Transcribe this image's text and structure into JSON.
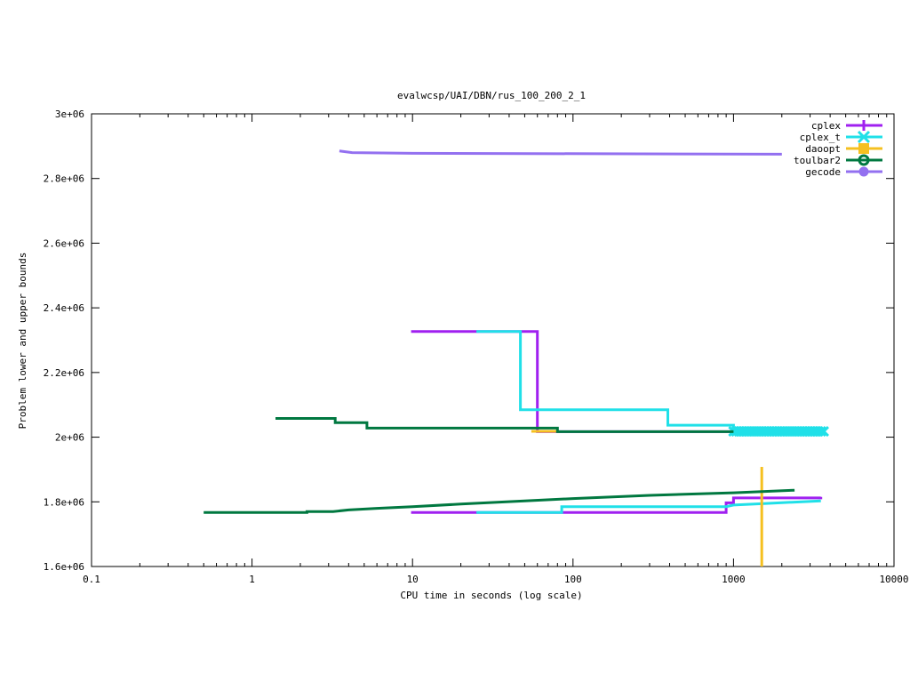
{
  "chart_data": {
    "type": "line",
    "title": "evalwcsp/UAI/DBN/rus_100_200_2_1",
    "xlabel": "CPU time in seconds (log scale)",
    "ylabel": "Problem lower and upper bounds",
    "xscale": "log",
    "xlim": [
      0.1,
      10000
    ],
    "ylim": [
      1600000,
      3000000
    ],
    "x_ticks": [
      0.1,
      1,
      10,
      100,
      1000,
      10000
    ],
    "x_tick_labels": [
      "0.1",
      "1",
      "10",
      "100",
      "1000",
      "10000"
    ],
    "y_ticks": [
      1600000,
      1800000,
      2000000,
      2200000,
      2400000,
      2600000,
      2800000,
      3000000
    ],
    "y_tick_labels": [
      "1.6e+06",
      "1.8e+06",
      "2e+06",
      "2.2e+06",
      "2.4e+06",
      "2.6e+06",
      "2.8e+06",
      "3e+06"
    ],
    "grid": false,
    "legend_position": "top-right",
    "series": [
      {
        "name": "cplex",
        "color": "#a020f0",
        "marker": "plus",
        "upper": [
          [
            9.8,
            2327000
          ],
          [
            60,
            2327000
          ],
          [
            60,
            2017000
          ],
          [
            1000,
            2017000
          ]
        ],
        "lower": [
          [
            9.8,
            1767000
          ],
          [
            900,
            1767000
          ],
          [
            900,
            1797000
          ],
          [
            1000,
            1797000
          ],
          [
            1000,
            1812000
          ],
          [
            3500,
            1812000
          ],
          [
            3500,
            1815000
          ]
        ]
      },
      {
        "name": "cplex_t",
        "color": "#20e0e8",
        "marker": "x",
        "upper": [
          [
            25,
            2327000
          ],
          [
            47,
            2327000
          ],
          [
            47,
            2085000
          ],
          [
            390,
            2085000
          ],
          [
            390,
            2037000
          ],
          [
            1000,
            2037000
          ],
          [
            1000,
            2018000
          ],
          [
            3700,
            2018000
          ]
        ],
        "lower": [
          [
            25,
            1767000
          ],
          [
            85,
            1767000
          ],
          [
            85,
            1785000
          ],
          [
            900,
            1785000
          ],
          [
            1000,
            1790000
          ],
          [
            1600,
            1795000
          ],
          [
            3500,
            1803000
          ]
        ]
      },
      {
        "name": "daoopt",
        "color": "#f5c020",
        "marker": "square",
        "upper": [
          [
            55,
            2018000
          ],
          [
            80,
            2018000
          ]
        ],
        "vertical": [
          1500,
          1600000,
          1908000
        ]
      },
      {
        "name": "toulbar2",
        "color": "#007840",
        "marker": "circle",
        "upper": [
          [
            1.4,
            2058000
          ],
          [
            3.3,
            2058000
          ],
          [
            3.3,
            2045000
          ],
          [
            5.2,
            2045000
          ],
          [
            5.2,
            2028000
          ],
          [
            80,
            2028000
          ],
          [
            80,
            2017000
          ],
          [
            1000,
            2017000
          ]
        ],
        "lower": [
          [
            0.5,
            1767000
          ],
          [
            2.2,
            1767000
          ],
          [
            2.2,
            1770000
          ],
          [
            3.2,
            1770000
          ],
          [
            4,
            1775000
          ],
          [
            6,
            1780000
          ],
          [
            10,
            1785000
          ],
          [
            20,
            1793000
          ],
          [
            50,
            1803000
          ],
          [
            100,
            1810000
          ],
          [
            300,
            1820000
          ],
          [
            1000,
            1828000
          ],
          [
            2400,
            1836000
          ]
        ]
      },
      {
        "name": "gecode",
        "color": "#9370f0",
        "marker": "dot",
        "upper": [
          [
            3.5,
            2885000
          ],
          [
            4.2,
            2880000
          ],
          [
            10,
            2878000
          ],
          [
            2000,
            2875000
          ]
        ]
      }
    ]
  }
}
